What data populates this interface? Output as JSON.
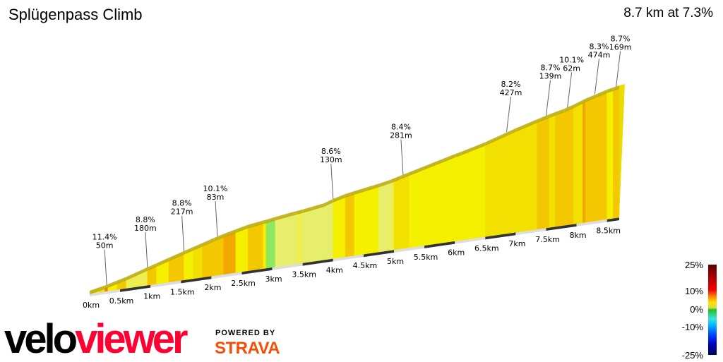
{
  "header": {
    "title": "Splügenpass Climb",
    "summary": "8.7 km at 7.3%"
  },
  "legend": {
    "labels": [
      "25%",
      "10%",
      "0%",
      "-10%",
      "-25%"
    ]
  },
  "branding": {
    "logo_left": "velo",
    "logo_right": "viewer",
    "powered_by": "POWERED BY",
    "strava": "STRAVA"
  },
  "chart_data": {
    "type": "area",
    "title": "Splügenpass Climb",
    "distance_km": 8.7,
    "avg_gradient_pct": 7.3,
    "x_ticks": [
      "0km",
      "0.5km",
      "1km",
      "1.5km",
      "2km",
      "2.5km",
      "3km",
      "3.5km",
      "4km",
      "4.5km",
      "5km",
      "5.5km",
      "6km",
      "6.5km",
      "7km",
      "7.5km",
      "8km",
      "8.5km"
    ],
    "color_scale_pct": [
      -25,
      -10,
      0,
      10,
      25
    ],
    "segments": [
      [
        0,
        8
      ],
      [
        0.25,
        11.4
      ],
      [
        0.3,
        7
      ],
      [
        0.45,
        9
      ],
      [
        0.6,
        5
      ],
      [
        0.95,
        9
      ],
      [
        1.1,
        7
      ],
      [
        1.3,
        8.8
      ],
      [
        1.55,
        7
      ],
      [
        1.7,
        8
      ],
      [
        1.85,
        9
      ],
      [
        2.05,
        8.8
      ],
      [
        2.2,
        9.5
      ],
      [
        2.3,
        10.1
      ],
      [
        2.4,
        7
      ],
      [
        2.6,
        9
      ],
      [
        2.85,
        6
      ],
      [
        2.9,
        1.5
      ],
      [
        3.05,
        4
      ],
      [
        3.3,
        3
      ],
      [
        3.4,
        5
      ],
      [
        3.5,
        4
      ],
      [
        3.85,
        3
      ],
      [
        4.0,
        6
      ],
      [
        4.2,
        8.6
      ],
      [
        4.35,
        7
      ],
      [
        4.75,
        4
      ],
      [
        4.95,
        5
      ],
      [
        5.0,
        8.4
      ],
      [
        5.25,
        7
      ],
      [
        5.7,
        6
      ],
      [
        5.8,
        7
      ],
      [
        6.0,
        6
      ],
      [
        6.1,
        7
      ],
      [
        6.5,
        8
      ],
      [
        7.0,
        8.2
      ],
      [
        7.35,
        9
      ],
      [
        7.55,
        8
      ],
      [
        7.65,
        9
      ],
      [
        7.8,
        8.7
      ],
      [
        7.95,
        8
      ],
      [
        8.1,
        10.1
      ],
      [
        8.15,
        9
      ],
      [
        8.5,
        7
      ],
      [
        8.6,
        8.7
      ]
    ],
    "annotations": [
      {
        "km": 0.28,
        "label1": "11.4%",
        "label2": "50m"
      },
      {
        "km": 0.95,
        "label1": "8.8%",
        "label2": "180m"
      },
      {
        "km": 1.55,
        "label1": "8.8%",
        "label2": "217m"
      },
      {
        "km": 2.1,
        "label1": "10.1%",
        "label2": "83m"
      },
      {
        "km": 4.0,
        "label1": "8.6%",
        "label2": "130m"
      },
      {
        "km": 5.15,
        "label1": "8.4%",
        "label2": "281m"
      },
      {
        "km": 6.85,
        "label1": "8.2%",
        "label2": "427m"
      },
      {
        "km": 7.5,
        "label1": "8.7%",
        "label2": "139m"
      },
      {
        "km": 7.85,
        "label1": "10.1%",
        "label2": "62m"
      },
      {
        "km": 8.3,
        "label1": "8.3%",
        "label2": "474m"
      },
      {
        "km": 8.65,
        "label1": "8.7%",
        "label2": "169m"
      }
    ]
  }
}
